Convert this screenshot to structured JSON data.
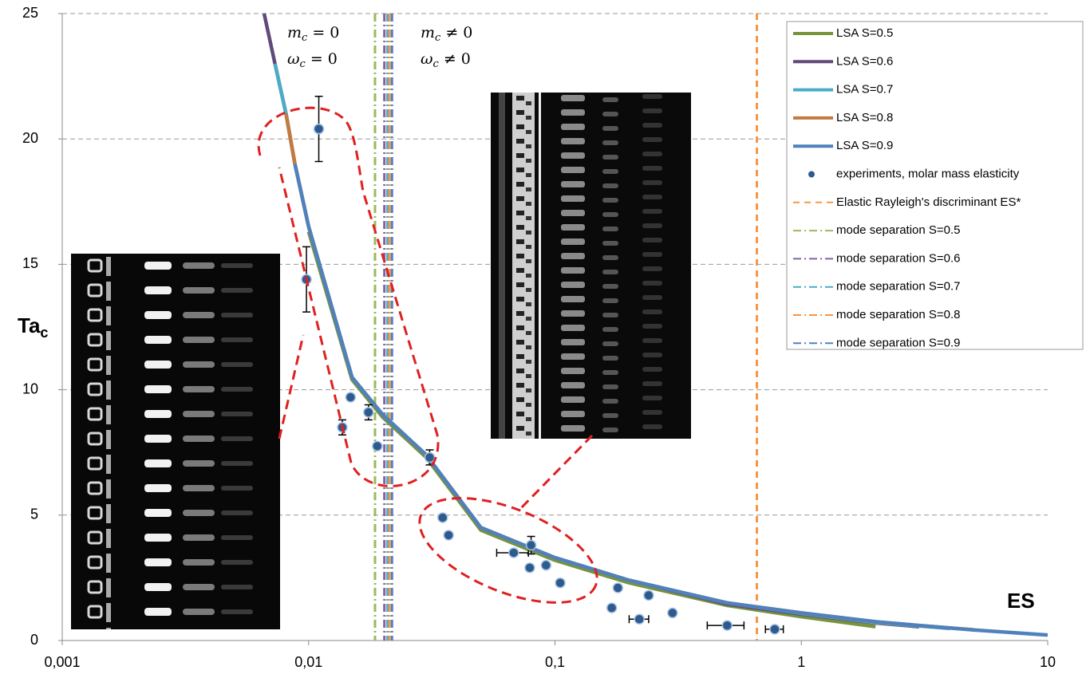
{
  "chart_data": {
    "type": "scatter",
    "xlog": true,
    "xlim": [
      0.001,
      10
    ],
    "ylim": [
      0,
      25
    ],
    "xticks": [
      {
        "value": 0.001,
        "label": "0,001"
      },
      {
        "value": 0.01,
        "label": "0,01"
      },
      {
        "value": 0.1,
        "label": "0,1"
      },
      1,
      10
    ],
    "yticks": [
      0,
      5,
      10,
      15,
      20,
      25
    ],
    "grid": "y",
    "legend": "top-right",
    "x_label": "ES",
    "y_label": {
      "text": "Ta",
      "sub": "c"
    },
    "annotations": [
      {
        "var": "m",
        "sub": "c",
        "rel": " = 0"
      },
      {
        "var": "ω",
        "sub": "c",
        "rel": " = 0"
      },
      {
        "var": "m",
        "sub": "c",
        "rel": " ≠ 0"
      },
      {
        "var": "ω",
        "sub": "c",
        "rel": " ≠ 0"
      }
    ],
    "series": [
      {
        "name": "LSA S=0.5",
        "kind": "line",
        "color": "#77933c",
        "x": [
          0.01,
          0.015,
          0.02,
          0.03,
          0.05,
          0.1,
          0.2,
          0.5,
          1,
          2
        ],
        "values": [
          16.3,
          10.4,
          8.9,
          7.3,
          4.4,
          3.2,
          2.3,
          1.4,
          0.95,
          0.55
        ]
      },
      {
        "name": "LSA S=0.6",
        "kind": "line",
        "color": "#604a7b",
        "x": [
          0.0066,
          0.0073,
          0.0081,
          0.0088,
          0.01,
          0.015,
          0.02,
          0.03,
          0.05,
          0.1,
          0.2,
          0.5,
          1,
          2,
          3
        ],
        "values": [
          25,
          23,
          21,
          19,
          16.5,
          10.5,
          9,
          7.4,
          4.5,
          3.3,
          2.4,
          1.45,
          1.05,
          0.7,
          0.55
        ]
      },
      {
        "name": "LSA S=0.7",
        "kind": "line",
        "color": "#4bacc6",
        "x": [
          0.0073,
          0.0081,
          0.0088,
          0.01,
          0.015,
          0.02,
          0.03,
          0.05,
          0.1,
          0.2,
          0.5,
          1,
          2,
          3,
          4
        ],
        "values": [
          23,
          21,
          19,
          16.5,
          10.5,
          9,
          7.4,
          4.5,
          3.3,
          2.4,
          1.5,
          1.08,
          0.72,
          0.58,
          0.48
        ]
      },
      {
        "name": "LSA S=0.8",
        "kind": "line",
        "color": "#c4793e",
        "x": [
          0.0081,
          0.0088,
          0.01,
          0.015,
          0.02,
          0.03,
          0.05,
          0.1,
          0.2,
          0.5,
          1,
          2,
          3,
          4,
          5
        ],
        "values": [
          21,
          19,
          16.5,
          10.5,
          9,
          7.4,
          4.5,
          3.3,
          2.4,
          1.5,
          1.1,
          0.74,
          0.6,
          0.5,
          0.43
        ]
      },
      {
        "name": "LSA S=0.9",
        "kind": "line",
        "color": "#4f81bd",
        "x": [
          0.0088,
          0.01,
          0.015,
          0.02,
          0.03,
          0.05,
          0.1,
          0.2,
          0.5,
          1,
          2,
          3,
          4,
          5,
          10
        ],
        "values": [
          19,
          16.5,
          10.5,
          9,
          7.4,
          4.5,
          3.3,
          2.4,
          1.5,
          1.1,
          0.75,
          0.6,
          0.5,
          0.42,
          0.22
        ]
      },
      {
        "name": "experiments, molar mass elasticity",
        "kind": "points",
        "color": "#2e5b8e",
        "x": [
          0.011,
          0.0098,
          0.0148,
          0.0137,
          0.0175,
          0.019,
          0.031,
          0.035,
          0.037,
          0.068,
          0.08,
          0.079,
          0.092,
          0.105,
          0.18,
          0.17,
          0.24,
          0.22,
          0.3,
          0.5,
          0.78
        ],
        "values": [
          20.4,
          14.4,
          9.7,
          8.5,
          9.1,
          7.75,
          7.3,
          4.9,
          4.2,
          3.5,
          3.8,
          2.9,
          3.0,
          2.3,
          2.1,
          1.3,
          1.8,
          0.85,
          1.1,
          0.6,
          0.45
        ],
        "yerr": [
          1.3,
          1.3,
          null,
          0.3,
          0.3,
          null,
          0.3,
          null,
          null,
          null,
          0.35,
          null,
          null,
          null,
          null,
          null,
          null,
          null,
          null,
          null,
          null
        ],
        "xerr": [
          null,
          null,
          null,
          null,
          null,
          null,
          null,
          null,
          null,
          0.01,
          null,
          null,
          null,
          null,
          null,
          null,
          null,
          0.02,
          null,
          0.085,
          0.065
        ]
      },
      {
        "name": "Elastic Rayleigh's discriminant ES*",
        "kind": "vline",
        "dash": "dash",
        "color": "#f79646",
        "x": 0.66
      },
      {
        "name": "mode separation S=0.5",
        "kind": "vline",
        "dash": "dashdot",
        "color": "#9bbb59",
        "x": 0.0186
      },
      {
        "name": "mode separation S=0.6",
        "kind": "vline",
        "dash": "dashdot",
        "color": "#8064a2",
        "x": 0.0203
      },
      {
        "name": "mode separation S=0.7",
        "kind": "vline",
        "dash": "dashdot",
        "color": "#4bacc6",
        "x": 0.0209
      },
      {
        "name": "mode separation S=0.8",
        "kind": "vline",
        "dash": "dashdot",
        "color": "#f79646",
        "x": 0.0213
      },
      {
        "name": "mode separation S=0.9",
        "kind": "vline",
        "dash": "dashdot",
        "color": "#4f81bd",
        "x": 0.0218
      }
    ]
  }
}
